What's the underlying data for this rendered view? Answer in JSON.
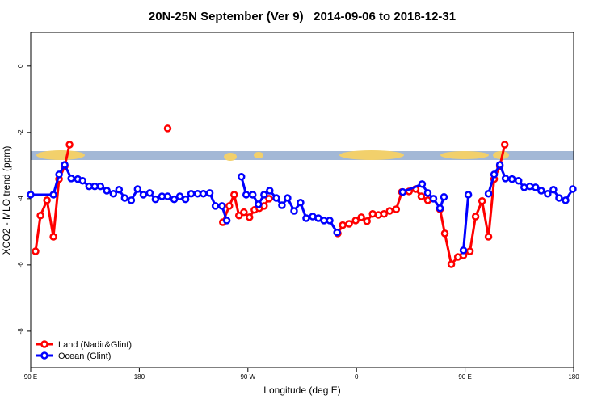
{
  "chart_data": {
    "type": "line",
    "title": "20N-25N September (Ver 9)   2014-09-06 to 2018-12-31",
    "x_label": "Longitude (deg E)",
    "y_label": "XCO2 - MLO trend (ppm)",
    "xlim": [
      90,
      540
    ],
    "ylim": [
      -9.1,
      1.02
    ],
    "xticks": [
      {
        "value": 90,
        "label": "90 E"
      },
      180,
      {
        "value": 270,
        "label": "90 W"
      },
      {
        "value": 360,
        "label": "0"
      },
      {
        "value": 450,
        "label": "90 E"
      },
      {
        "value": 540,
        "label": "180"
      }
    ],
    "yticks": [
      0,
      -2,
      -4,
      -6,
      -8
    ],
    "legend": "bottom left",
    "series": [
      {
        "name": "Land (Nadir&Glint)",
        "color": "#ff0000",
        "x": [
          94.0,
          98.1,
          103.5,
          108.8,
          113.5,
          118.2,
          122.2,
          null,
          203.5,
          null,
          249.2,
          254.6,
          258.6,
          262.6,
          266.7,
          271.3,
          275.4,
          279.4,
          283.4,
          287.5,
          null,
          344.5,
          348.6,
          353.9,
          359.3,
          364.0,
          368.7,
          373.4,
          378.1,
          382.8,
          387.5,
          392.9,
          397.6,
          403.6,
          409.0,
          413.7,
          419.1,
          null,
          429.2,
          433.2,
          438.6,
          444.0,
          448.6,
          454.0,
          458.7,
          464.1,
          469.4,
          474.1,
          478.8,
          482.9
        ],
        "values": [
          -5.59,
          -4.51,
          -4.05,
          -5.15,
          -3.41,
          -3.02,
          -2.37,
          null,
          -1.88,
          null,
          -4.71,
          -4.22,
          -3.88,
          -4.51,
          -4.41,
          -4.56,
          -4.34,
          -4.29,
          -4.22,
          -4.0,
          null,
          -5.05,
          -4.8,
          -4.76,
          -4.66,
          -4.56,
          -4.68,
          -4.46,
          -4.49,
          -4.46,
          -4.37,
          -4.32,
          -3.8,
          -3.78,
          -3.71,
          -3.93,
          -4.05,
          null,
          -4.32,
          -5.05,
          -5.98,
          -5.76,
          -5.71,
          -5.59,
          -4.54,
          -4.07,
          -5.15,
          -3.41,
          -3.02,
          -2.37
        ]
      },
      {
        "name": "Ocean (Glint)",
        "color": "#0000ff",
        "x": [
          90,
          108.8,
          113.5,
          118.2,
          123.6,
          129.0,
          133.0,
          138.4,
          143.1,
          147.8,
          153.1,
          158.5,
          163.2,
          167.9,
          173.3,
          178.6,
          183.4,
          188.7,
          193.4,
          198.8,
          203.5,
          208.9,
          213.6,
          218.3,
          223.0,
          228.3,
          233.1,
          238.4,
          243.1,
          248.5,
          252.5,
          null,
          264.6,
          268.6,
          274.0,
          278.7,
          283.4,
          288.1,
          293.5,
          298.2,
          302.9,
          308.3,
          313.6,
          318.3,
          323.7,
          328.4,
          333.1,
          337.8,
          343.9,
          null,
          398.3,
          414.4,
          419.1,
          423.8,
          429.2,
          432.5,
          null,
          448.6,
          452.7,
          null,
          469.4,
          474.1,
          478.8,
          483.5,
          488.9,
          494.3,
          499.0,
          503.7,
          508.4,
          513.1,
          518.5,
          523.2,
          527.9,
          533.3,
          539.3
        ],
        "values": [
          -3.88,
          -3.88,
          -3.27,
          -2.98,
          -3.39,
          -3.41,
          -3.46,
          -3.63,
          -3.63,
          -3.63,
          -3.76,
          -3.85,
          -3.73,
          -3.98,
          -4.05,
          -3.71,
          -3.88,
          -3.83,
          -4.02,
          -3.93,
          -3.93,
          -4.02,
          -3.93,
          -4.02,
          -3.85,
          -3.85,
          -3.85,
          -3.83,
          -4.22,
          -4.22,
          -4.66,
          null,
          -3.34,
          -3.88,
          -3.88,
          -4.17,
          -3.88,
          -3.76,
          -3.98,
          -4.2,
          -3.98,
          -4.37,
          -4.12,
          -4.59,
          -4.54,
          -4.59,
          -4.66,
          -4.66,
          -5.02,
          null,
          -3.8,
          -3.56,
          -3.83,
          -4.0,
          -4.29,
          -3.95,
          null,
          -5.56,
          -3.88,
          null,
          -3.85,
          -3.27,
          -2.98,
          -3.39,
          -3.41,
          -3.46,
          -3.66,
          -3.63,
          -3.66,
          -3.76,
          -3.85,
          -3.73,
          -3.98,
          -4.05,
          -3.71
        ]
      }
    ]
  }
}
